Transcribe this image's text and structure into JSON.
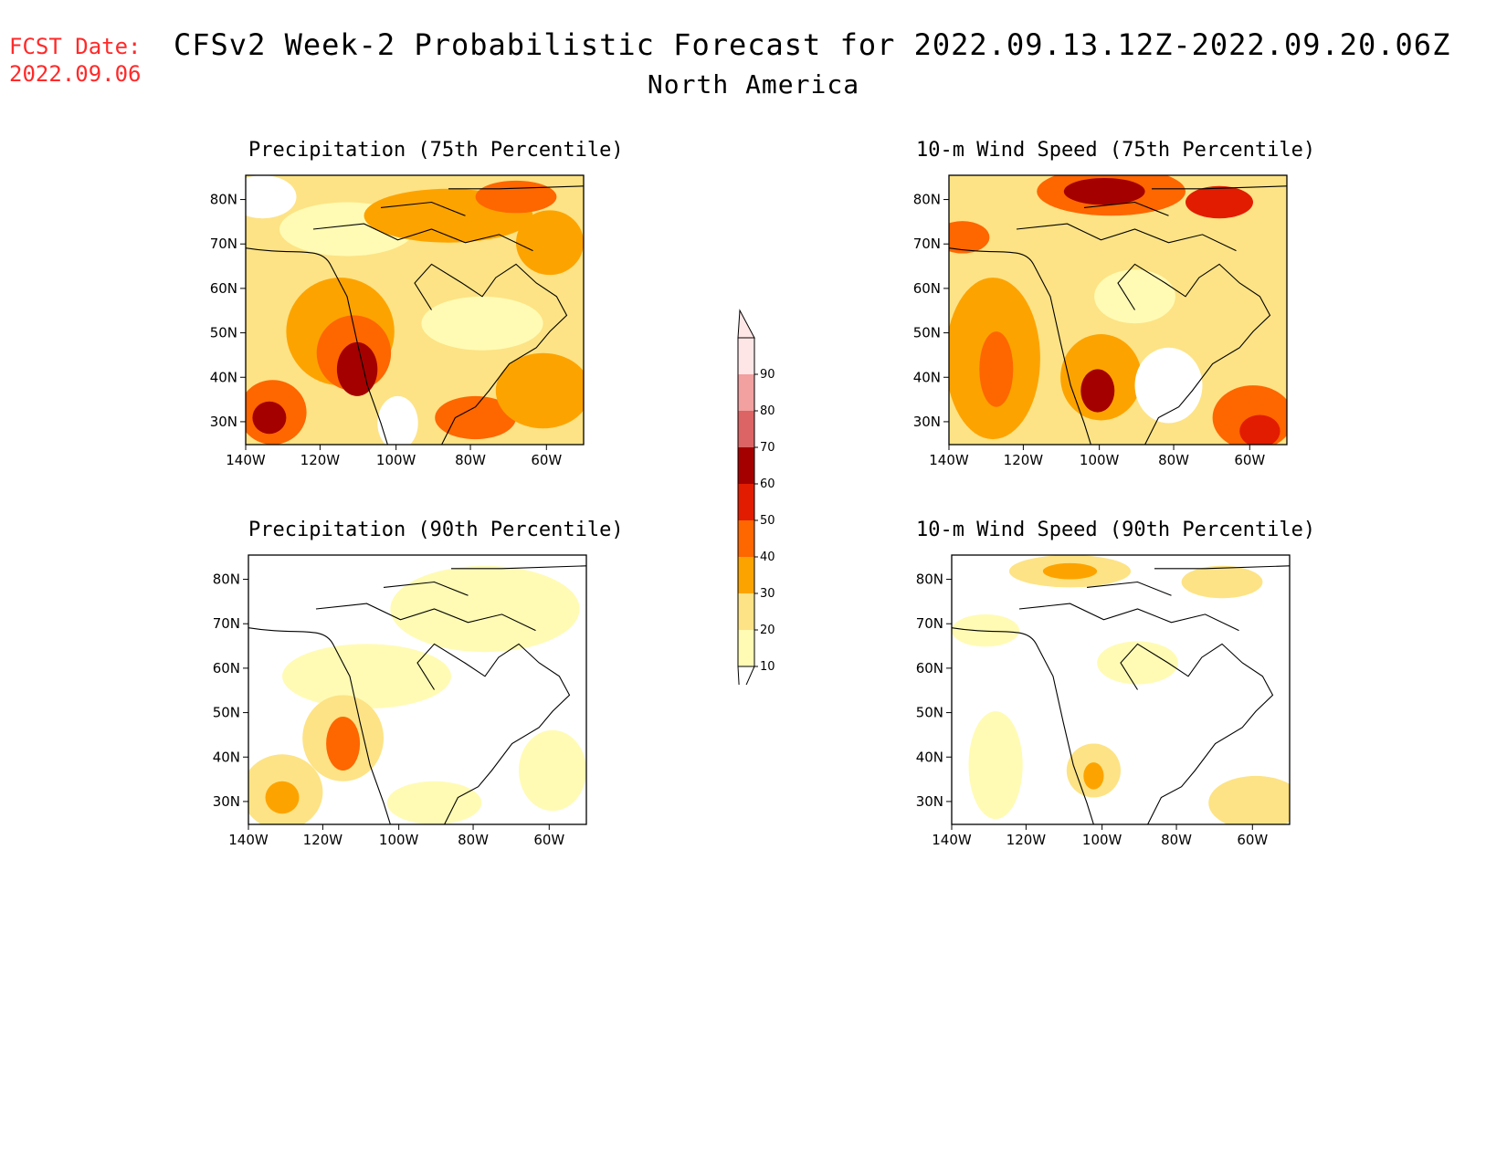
{
  "fcst": {
    "label": "FCST Date:",
    "date": "2022.09.06"
  },
  "title": "CFSv2 Week-2 Probabilistic Forecast for 2022.09.13.12Z-2022.09.20.06Z",
  "subtitle": "North America",
  "axes": {
    "lat_labels": [
      "30N",
      "40N",
      "50N",
      "60N",
      "70N",
      "80N"
    ],
    "lon_labels": [
      "140W",
      "120W",
      "100W",
      "80W",
      "60W"
    ]
  },
  "panels": [
    {
      "id": "precip75",
      "title": "Precipitation (75th Percentile)",
      "level": "high"
    },
    {
      "id": "wind75",
      "title": "10-m Wind Speed (75th Percentile)",
      "level": "high"
    },
    {
      "id": "precip90",
      "title": "Precipitation (90th Percentile)",
      "level": "low"
    },
    {
      "id": "wind90",
      "title": "10-m Wind Speed (90th Percentile)",
      "level": "low"
    }
  ],
  "colorbar": {
    "levels": [
      "10",
      "20",
      "30",
      "40",
      "50",
      "60",
      "70",
      "80",
      "90"
    ],
    "colors": [
      "#fffbb4",
      "#fde385",
      "#fda300",
      "#fe6600",
      "#e21c00",
      "#a40000",
      "#dc6464",
      "#f2a0a0",
      "#ffe6e6"
    ]
  }
}
